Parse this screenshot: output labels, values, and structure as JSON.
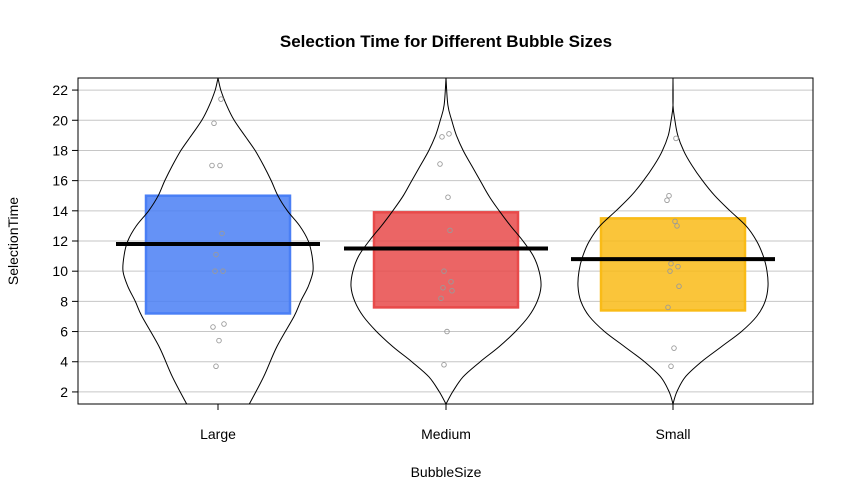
{
  "chart_data": {
    "type": "pirateplot",
    "title": "Selection Time for Different Bubble Sizes",
    "xlabel": "BubbleSize",
    "ylabel": "SelectionTime",
    "ylim": [
      1.2,
      22.8
    ],
    "yticks": [
      2,
      4,
      6,
      8,
      10,
      12,
      14,
      16,
      18,
      20,
      22
    ],
    "grid": true,
    "legend": "none",
    "categories": [
      "Large",
      "Medium",
      "Small"
    ],
    "colors": [
      "#4a7ff5",
      "#e84a4a",
      "#f9bb17"
    ],
    "groups": [
      {
        "name": "Large",
        "mean": 11.8,
        "ci": [
          7.2,
          15.0
        ],
        "points": [
          21.4,
          19.8,
          17.0,
          17.0,
          12.5,
          11.1,
          10.0,
          10.0,
          6.5,
          6.3,
          5.4,
          3.7
        ],
        "density": [
          [
            1.2,
            0.33
          ],
          [
            3,
            0.48
          ],
          [
            5,
            0.62
          ],
          [
            7,
            0.8
          ],
          [
            8,
            0.87
          ],
          [
            9,
            0.95
          ],
          [
            10,
            1.0
          ],
          [
            11,
            0.99
          ],
          [
            12,
            0.95
          ],
          [
            13,
            0.86
          ],
          [
            14,
            0.73
          ],
          [
            15,
            0.63
          ],
          [
            16,
            0.56
          ],
          [
            17,
            0.48
          ],
          [
            18,
            0.39
          ],
          [
            19,
            0.28
          ],
          [
            20,
            0.17
          ],
          [
            21,
            0.09
          ],
          [
            22,
            0.03
          ],
          [
            22.8,
            0.0
          ]
        ]
      },
      {
        "name": "Medium",
        "mean": 11.5,
        "ci": [
          7.6,
          13.9
        ],
        "points": [
          19.1,
          18.9,
          17.1,
          14.9,
          12.7,
          10.0,
          9.3,
          8.9,
          8.7,
          8.2,
          6.0,
          3.8
        ],
        "density": [
          [
            1.2,
            0.0
          ],
          [
            2,
            0.07
          ],
          [
            3,
            0.18
          ],
          [
            4,
            0.36
          ],
          [
            5,
            0.56
          ],
          [
            6,
            0.73
          ],
          [
            7,
            0.87
          ],
          [
            8,
            0.96
          ],
          [
            9,
            1.0
          ],
          [
            10,
            0.98
          ],
          [
            11,
            0.92
          ],
          [
            12,
            0.81
          ],
          [
            13,
            0.68
          ],
          [
            14,
            0.56
          ],
          [
            15,
            0.45
          ],
          [
            16,
            0.36
          ],
          [
            17,
            0.27
          ],
          [
            18,
            0.18
          ],
          [
            19,
            0.11
          ],
          [
            20,
            0.06
          ],
          [
            21,
            0.02
          ],
          [
            22.8,
            0.0
          ]
        ]
      },
      {
        "name": "Small",
        "mean": 10.8,
        "ci": [
          7.4,
          13.5
        ],
        "points": [
          18.8,
          15.0,
          14.7,
          13.3,
          13.0,
          10.5,
          10.3,
          10.0,
          9.0,
          7.6,
          4.9,
          3.7
        ],
        "density": [
          [
            1.2,
            0.0
          ],
          [
            2,
            0.04
          ],
          [
            3,
            0.13
          ],
          [
            4,
            0.3
          ],
          [
            5,
            0.51
          ],
          [
            6,
            0.72
          ],
          [
            7,
            0.88
          ],
          [
            8,
            0.97
          ],
          [
            9,
            1.0
          ],
          [
            10,
            0.99
          ],
          [
            11,
            0.95
          ],
          [
            12,
            0.88
          ],
          [
            13,
            0.77
          ],
          [
            14,
            0.6
          ],
          [
            15,
            0.44
          ],
          [
            16,
            0.31
          ],
          [
            17,
            0.2
          ],
          [
            18,
            0.11
          ],
          [
            19,
            0.05
          ],
          [
            20,
            0.02
          ],
          [
            21,
            0.0
          ],
          [
            22.8,
            0.0
          ]
        ]
      }
    ]
  }
}
